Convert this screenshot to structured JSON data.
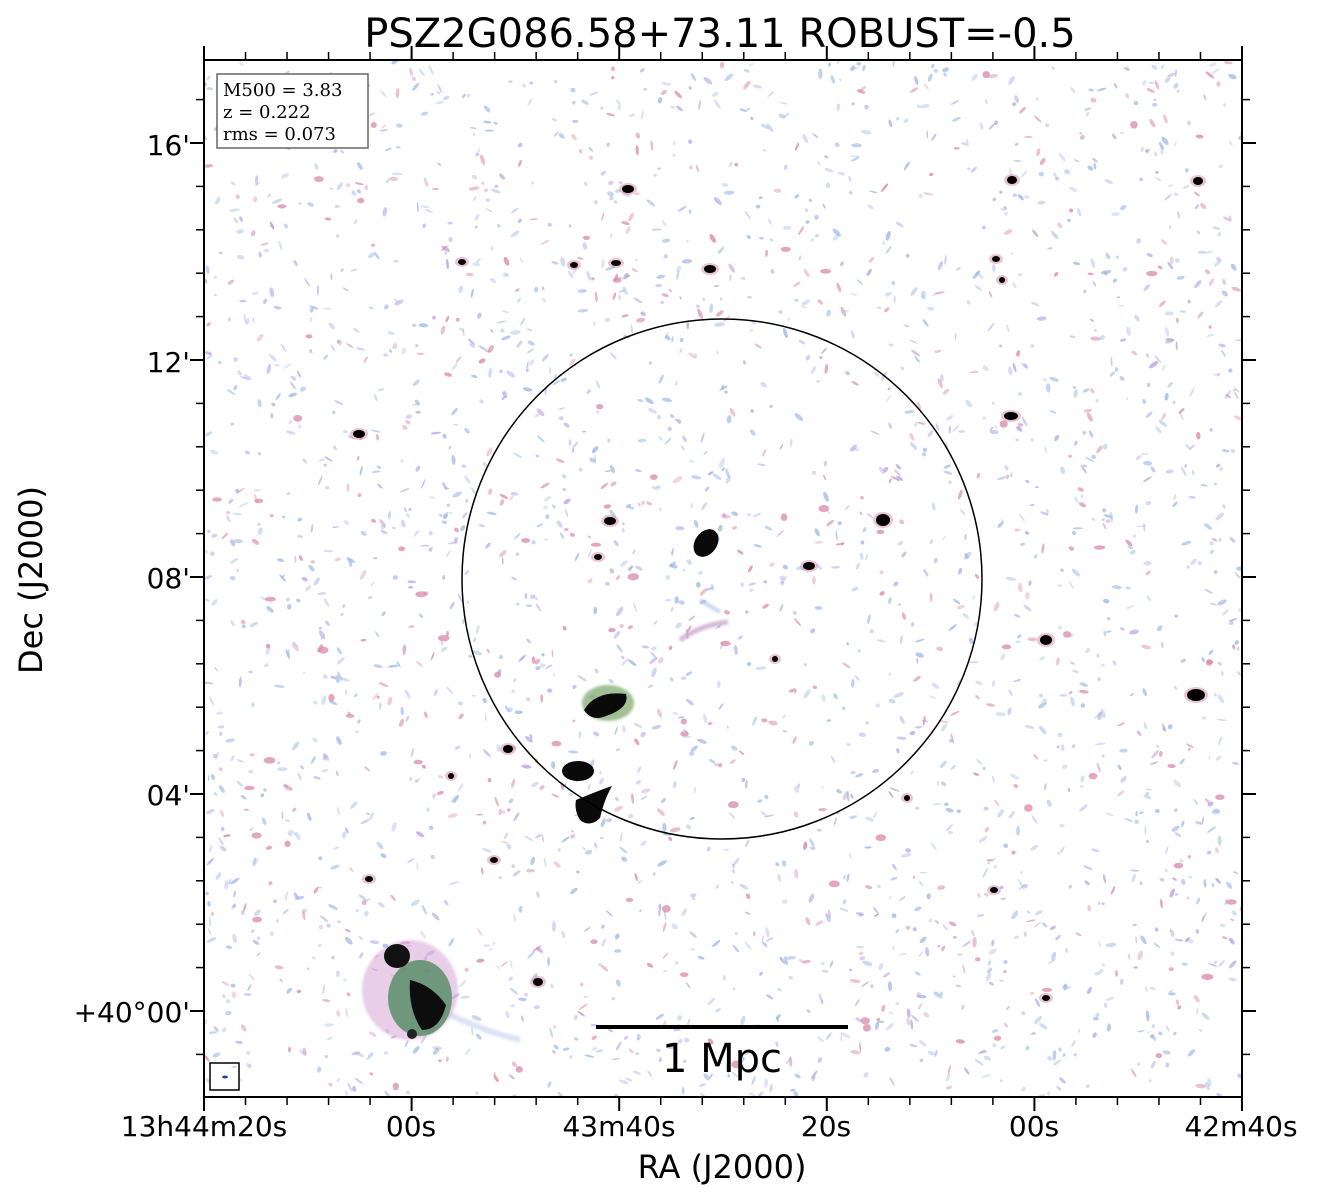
{
  "title": "PSZ2G086.58+73.11 ROBUST=-0.5",
  "xlabel": "RA (J2000)",
  "ylabel": "Dec (J2000)",
  "xticks": [
    "13h44m20s",
    "00s",
    "43m40s",
    "20s",
    "00s",
    "42m40s"
  ],
  "yticks": [
    "16'",
    "12'",
    "08'",
    "04'",
    "+40°00'"
  ],
  "info": {
    "m500": "M500 = 3.83",
    "z": "z = 0.222",
    "rms": "rms = 0.073"
  },
  "scale_bar": "1 Mpc",
  "colors": {
    "noise_blue": "#9fb9e6",
    "noise_purple": "#b9a3e6",
    "noise_pink": "#d88aa8",
    "source_core": "#000000",
    "source_edge": "#3a6e4a"
  }
}
